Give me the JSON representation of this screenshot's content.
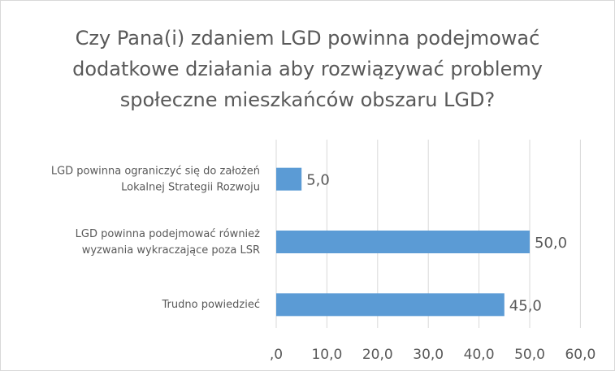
{
  "chart_data": {
    "type": "bar",
    "orientation": "horizontal",
    "title": "Czy Pana(i) zdaniem LGD powinna podejmować\ndodatkowe działania aby rozwiązywać problemy\nspołeczne mieszkańców obszaru LGD?",
    "categories": [
      "LGD powinna ograniczyć się do założeń\nLokalnej Strategii Rozwoju",
      "LGD powinna podejmować również\nwyzwania wykraczające poza LSR",
      "Trudno powiedzieć"
    ],
    "values": [
      5,
      50,
      45
    ],
    "value_labels": [
      "5,0",
      "50,0",
      "45,0"
    ],
    "color": "#5b9bd5",
    "xlim": [
      0,
      60
    ],
    "xticks": [
      {
        "value": 0,
        "label": ",0"
      },
      {
        "value": 10,
        "label": "10,0"
      },
      {
        "value": 20,
        "label": "20,0"
      },
      {
        "value": 30,
        "label": "30,0"
      },
      {
        "value": 40,
        "label": "40,0"
      },
      {
        "value": 50,
        "label": "50,0"
      },
      {
        "value": 60,
        "label": "60,0"
      }
    ],
    "grid": true
  }
}
